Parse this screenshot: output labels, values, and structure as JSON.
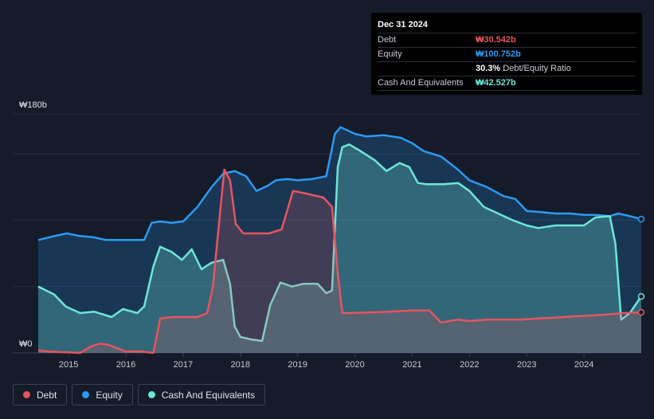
{
  "tooltip": {
    "date": "Dec 31 2024",
    "rows": [
      {
        "label": "Debt",
        "value": "₩30.542b",
        "color": "#e8545f"
      },
      {
        "label": "Equity",
        "value": "₩100.752b",
        "color": "#2b9af3"
      },
      {
        "label": "",
        "value": "30.3%",
        "extra": "Debt/Equity Ratio",
        "color": "#ffffff"
      },
      {
        "label": "Cash And Equivalents",
        "value": "₩42.527b",
        "color": "#6ee6d6"
      }
    ]
  },
  "legend": [
    {
      "label": "Debt",
      "color": "#e8545f"
    },
    {
      "label": "Equity",
      "color": "#2b9af3"
    },
    {
      "label": "Cash And Equivalents",
      "color": "#6ee6d6"
    }
  ],
  "chart_data": {
    "type": "area",
    "ylim": [
      0,
      180
    ],
    "y_ticks": [
      {
        "value": 180,
        "label": "₩180b"
      },
      {
        "value": 0,
        "label": "₩0"
      }
    ],
    "xlim": [
      2014.47,
      2025.0
    ],
    "x_ticks": [
      "2015",
      "2016",
      "2017",
      "2018",
      "2019",
      "2020",
      "2021",
      "2022",
      "2023",
      "2024"
    ],
    "grid": true,
    "legend_position": "bottom-left",
    "series": [
      {
        "name": "Equity",
        "color": "#2b9af3",
        "x": [
          2014.47,
          2014.75,
          2014.97,
          2015.2,
          2015.45,
          2015.65,
          2016.0,
          2016.32,
          2016.45,
          2016.6,
          2016.8,
          2017.0,
          2017.25,
          2017.5,
          2017.7,
          2017.9,
          2018.1,
          2018.28,
          2018.48,
          2018.62,
          2018.82,
          2019.0,
          2019.25,
          2019.5,
          2019.65,
          2019.75,
          2019.85,
          2020.0,
          2020.2,
          2020.5,
          2020.8,
          2021.0,
          2021.2,
          2021.5,
          2021.8,
          2022.0,
          2022.3,
          2022.6,
          2022.8,
          2023.0,
          2023.25,
          2023.5,
          2023.75,
          2024.0,
          2024.2,
          2024.45,
          2024.6,
          2024.8,
          2025.0
        ],
        "y": [
          85,
          88,
          90,
          88,
          87,
          85,
          85,
          85,
          98,
          99,
          98,
          99,
          110,
          125,
          135,
          137,
          133,
          122,
          126,
          130,
          131,
          130,
          131,
          133,
          165,
          170,
          168,
          165,
          163,
          164,
          162,
          158,
          152,
          148,
          138,
          130,
          125,
          118,
          116,
          107,
          106,
          105,
          105,
          104,
          104,
          103,
          105,
          103,
          100.752
        ]
      },
      {
        "name": "Cash And Equivalents",
        "color": "#6ee6d6",
        "x": [
          2014.47,
          2014.75,
          2014.95,
          2015.2,
          2015.45,
          2015.75,
          2015.95,
          2016.2,
          2016.32,
          2016.48,
          2016.6,
          2016.8,
          2016.98,
          2017.15,
          2017.32,
          2017.5,
          2017.7,
          2017.82,
          2017.9,
          2018.0,
          2018.2,
          2018.38,
          2018.52,
          2018.7,
          2018.9,
          2019.1,
          2019.35,
          2019.5,
          2019.6,
          2019.7,
          2019.78,
          2019.9,
          2020.1,
          2020.35,
          2020.55,
          2020.78,
          2020.95,
          2021.1,
          2021.25,
          2021.55,
          2021.8,
          2022.0,
          2022.25,
          2022.5,
          2022.75,
          2023.0,
          2023.2,
          2023.5,
          2023.75,
          2024.0,
          2024.2,
          2024.45,
          2024.55,
          2024.65,
          2024.8,
          2025.0
        ],
        "y": [
          50,
          44,
          35,
          30,
          31,
          27,
          33,
          30,
          35,
          65,
          80,
          76,
          70,
          78,
          63,
          68,
          70,
          52,
          20,
          12,
          10,
          9,
          36,
          53,
          50,
          52,
          52,
          45,
          47,
          140,
          155,
          157,
          152,
          145,
          137,
          143,
          140,
          128,
          127,
          127,
          128,
          122,
          110,
          105,
          100,
          96,
          94,
          96,
          96,
          96,
          102,
          103,
          82,
          25,
          30,
          42.527
        ]
      },
      {
        "name": "Debt",
        "color": "#e8545f",
        "x": [
          2014.47,
          2014.65,
          2014.95,
          2015.2,
          2015.4,
          2015.55,
          2015.7,
          2016.0,
          2016.15,
          2016.28,
          2016.48,
          2016.6,
          2016.8,
          2017.0,
          2017.25,
          2017.42,
          2017.52,
          2017.62,
          2017.72,
          2017.82,
          2017.92,
          2018.05,
          2018.3,
          2018.5,
          2018.72,
          2018.92,
          2019.15,
          2019.45,
          2019.6,
          2019.7,
          2019.78,
          2019.9,
          2020.2,
          2020.6,
          2021.0,
          2021.3,
          2021.5,
          2021.8,
          2022.0,
          2022.3,
          2022.6,
          2022.9,
          2023.2,
          2023.5,
          2023.8,
          2024.1,
          2024.4,
          2024.7,
          2025.0
        ],
        "y": [
          2,
          1,
          0.5,
          0,
          5,
          7,
          6,
          1,
          1,
          1,
          0,
          26,
          27,
          27,
          27,
          30,
          50,
          95,
          138,
          130,
          97,
          90,
          90,
          90,
          93,
          122,
          120,
          117,
          110,
          60,
          30,
          30,
          30.5,
          31,
          32,
          32,
          23,
          25,
          24,
          25,
          25,
          25,
          26,
          26.5,
          27.5,
          28,
          29,
          30,
          30.542
        ]
      }
    ]
  }
}
